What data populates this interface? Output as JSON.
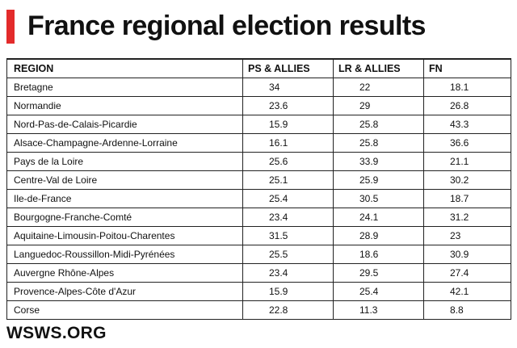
{
  "header": {
    "title": "France regional election results"
  },
  "chart_data": {
    "type": "table",
    "title": "France regional election results",
    "columns": [
      "REGION",
      "PS & ALLIES",
      "LR & ALLIES",
      "FN"
    ],
    "rows": [
      [
        "Bretagne",
        "34",
        "22",
        "18.1"
      ],
      [
        "Normandie",
        "23.6",
        "29",
        "26.8"
      ],
      [
        "Nord-Pas-de-Calais-Picardie",
        "15.9",
        "25.8",
        "43.3"
      ],
      [
        "Alsace-Champagne-Ardenne-Lorraine",
        "16.1",
        "25.8",
        "36.6"
      ],
      [
        "Pays de la Loire",
        "25.6",
        "33.9",
        "21.1"
      ],
      [
        "Centre-Val de Loire",
        "25.1",
        "25.9",
        "30.2"
      ],
      [
        "Ile-de-France",
        "25.4",
        "30.5",
        "18.7"
      ],
      [
        "Bourgogne-Franche-Comté",
        "23.4",
        "24.1",
        "31.2"
      ],
      [
        "Aquitaine-Limousin-Poitou-Charentes",
        "31.5",
        "28.9",
        "23"
      ],
      [
        "Languedoc-Roussillon-Midi-Pyrénées",
        "25.5",
        "18.6",
        "30.9"
      ],
      [
        "Auvergne Rhône-Alpes",
        "23.4",
        "29.5",
        "27.4"
      ],
      [
        "Provence-Alpes-Côte d'Azur",
        "15.9",
        "25.4",
        "42.1"
      ],
      [
        "Corse",
        "22.8",
        "11.3",
        "8.8"
      ]
    ]
  },
  "footer": {
    "brand": "WSWS.ORG"
  },
  "colors": {
    "accent": "#e32b2b",
    "text": "#111111",
    "border": "#222222"
  }
}
